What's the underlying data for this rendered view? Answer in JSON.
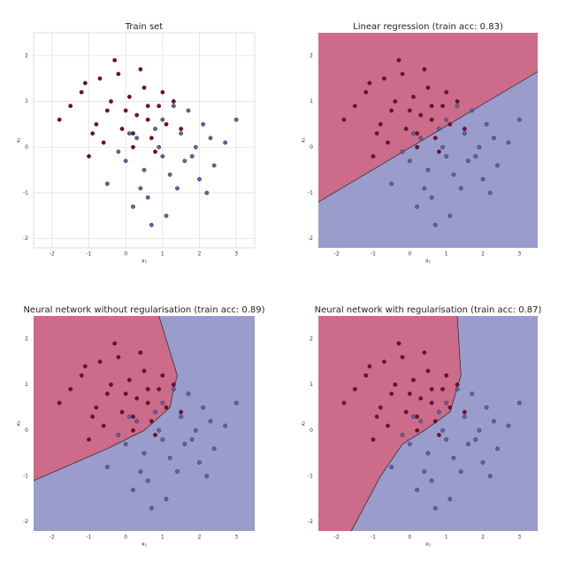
{
  "chart_data": [
    {
      "type": "scatter",
      "title": "Train set",
      "xlabel": "x₁",
      "ylabel": "x₂",
      "xlim": [
        -2.5,
        3.5
      ],
      "ylim": [
        -2.2,
        2.5
      ],
      "xticks": [
        -2,
        -1,
        0,
        1,
        2,
        3
      ],
      "yticks": [
        -2,
        -1,
        0,
        1,
        2
      ],
      "grid": true,
      "series": [
        {
          "color": "#7a0a2e",
          "x": [
            -1.8,
            -1.2,
            -0.9,
            -0.7,
            -0.5,
            -0.3,
            -0.1,
            0.1,
            0.3,
            0.5,
            0.7,
            0.9,
            1.1,
            1.3,
            -1.0,
            -0.6,
            -0.2,
            0.2,
            0.6,
            1.0,
            -1.5,
            -0.8,
            0.0,
            0.4,
            0.8,
            -0.4,
            0.2,
            -1.1,
            0.6,
            1.5
          ],
          "values": [
            0.6,
            1.2,
            0.3,
            1.5,
            0.8,
            1.9,
            0.4,
            1.1,
            0.7,
            1.3,
            0.2,
            0.9,
            0.5,
            1.0,
            -0.2,
            0.1,
            1.6,
            0.0,
            0.6,
            1.2,
            0.9,
            0.5,
            0.8,
            1.7,
            -0.1,
            1.0,
            0.3,
            1.4,
            0.9,
            0.4
          ]
        },
        {
          "color": "#5d62a8",
          "x": [
            -0.5,
            0.0,
            0.3,
            0.6,
            0.9,
            1.2,
            1.5,
            1.8,
            2.1,
            2.4,
            2.7,
            3.0,
            0.2,
            0.5,
            0.8,
            1.1,
            1.4,
            1.7,
            2.0,
            2.3,
            -0.2,
            0.4,
            1.0,
            1.6,
            2.2,
            0.7,
            1.3,
            1.9,
            0.1,
            1.0
          ],
          "values": [
            -0.8,
            -0.3,
            0.2,
            -1.1,
            0.0,
            -0.6,
            0.3,
            -0.2,
            0.5,
            -0.4,
            0.1,
            0.6,
            -1.3,
            -0.5,
            0.4,
            -1.5,
            -0.9,
            0.8,
            -0.7,
            0.2,
            -0.1,
            -0.9,
            0.6,
            -0.3,
            -1.0,
            -1.7,
            0.9,
            0.0,
            0.3,
            -0.2
          ]
        }
      ]
    },
    {
      "type": "scatter",
      "title": "Linear regression (train acc: 0.83)",
      "xlabel": "x₁",
      "ylabel": "x₂",
      "xlim": [
        -2.5,
        3.5
      ],
      "ylim": [
        -2.2,
        2.5
      ],
      "xticks": [
        -2,
        -1,
        0,
        1,
        2,
        3
      ],
      "yticks": [
        -2,
        -1,
        0,
        1,
        2
      ],
      "grid": false,
      "boundary": {
        "x": [
          3.5,
          -2.5
        ],
        "y": [
          1.65,
          -1.2
        ]
      },
      "series": [
        {
          "color": "#7a0a2e",
          "x": [
            -1.8,
            -1.2,
            -0.9,
            -0.7,
            -0.5,
            -0.3,
            -0.1,
            0.1,
            0.3,
            0.5,
            0.7,
            0.9,
            1.1,
            1.3,
            -1.0,
            -0.6,
            -0.2,
            0.2,
            0.6,
            1.0,
            -1.5,
            -0.8,
            0.0,
            0.4,
            0.8,
            -0.4,
            0.2,
            -1.1,
            0.6,
            1.5
          ],
          "values": [
            0.6,
            1.2,
            0.3,
            1.5,
            0.8,
            1.9,
            0.4,
            1.1,
            0.7,
            1.3,
            0.2,
            0.9,
            0.5,
            1.0,
            -0.2,
            0.1,
            1.6,
            0.0,
            0.6,
            1.2,
            0.9,
            0.5,
            0.8,
            1.7,
            -0.1,
            1.0,
            0.3,
            1.4,
            0.9,
            0.4
          ]
        },
        {
          "color": "#5d62a8",
          "x": [
            -0.5,
            0.0,
            0.3,
            0.6,
            0.9,
            1.2,
            1.5,
            1.8,
            2.1,
            2.4,
            2.7,
            3.0,
            0.2,
            0.5,
            0.8,
            1.1,
            1.4,
            1.7,
            2.0,
            2.3,
            -0.2,
            0.4,
            1.0,
            1.6,
            2.2,
            0.7,
            1.3,
            1.9,
            0.1,
            1.0
          ],
          "values": [
            -0.8,
            -0.3,
            0.2,
            -1.1,
            0.0,
            -0.6,
            0.3,
            -0.2,
            0.5,
            -0.4,
            0.1,
            0.6,
            -1.3,
            -0.5,
            0.4,
            -1.5,
            -0.9,
            0.8,
            -0.7,
            0.2,
            -0.1,
            -0.9,
            0.6,
            -0.3,
            -1.0,
            -1.7,
            0.9,
            0.0,
            0.3,
            -0.2
          ]
        }
      ]
    },
    {
      "type": "scatter",
      "title": "Neural network without regularisation (train acc: 0.89)",
      "xlabel": "x₁",
      "ylabel": "x₂",
      "xlim": [
        -2.5,
        3.5
      ],
      "ylim": [
        -2.2,
        2.5
      ],
      "xticks": [
        -2,
        -1,
        0,
        1,
        2,
        3
      ],
      "yticks": [
        -2,
        -1,
        0,
        1,
        2
      ],
      "grid": false,
      "boundary": {
        "x": [
          0.9,
          1.4,
          1.3,
          1.2,
          0.5,
          -0.5,
          -2.5
        ],
        "y": [
          2.5,
          1.2,
          0.9,
          0.5,
          0.0,
          -0.4,
          -1.1
        ]
      },
      "series": [
        {
          "color": "#7a0a2e",
          "x": [
            -1.8,
            -1.2,
            -0.9,
            -0.7,
            -0.5,
            -0.3,
            -0.1,
            0.1,
            0.3,
            0.5,
            0.7,
            0.9,
            1.1,
            1.3,
            -1.0,
            -0.6,
            -0.2,
            0.2,
            0.6,
            1.0,
            -1.5,
            -0.8,
            0.0,
            0.4,
            0.8,
            -0.4,
            0.2,
            -1.1,
            0.6,
            1.5
          ],
          "values": [
            0.6,
            1.2,
            0.3,
            1.5,
            0.8,
            1.9,
            0.4,
            1.1,
            0.7,
            1.3,
            0.2,
            0.9,
            0.5,
            1.0,
            -0.2,
            0.1,
            1.6,
            0.0,
            0.6,
            1.2,
            0.9,
            0.5,
            0.8,
            1.7,
            -0.1,
            1.0,
            0.3,
            1.4,
            0.9,
            0.4
          ]
        },
        {
          "color": "#5d62a8",
          "x": [
            -0.5,
            0.0,
            0.3,
            0.6,
            0.9,
            1.2,
            1.5,
            1.8,
            2.1,
            2.4,
            2.7,
            3.0,
            0.2,
            0.5,
            0.8,
            1.1,
            1.4,
            1.7,
            2.0,
            2.3,
            -0.2,
            0.4,
            1.0,
            1.6,
            2.2,
            0.7,
            1.3,
            1.9,
            0.1,
            1.0
          ],
          "values": [
            -0.8,
            -0.3,
            0.2,
            -1.1,
            0.0,
            -0.6,
            0.3,
            -0.2,
            0.5,
            -0.4,
            0.1,
            0.6,
            -1.3,
            -0.5,
            0.4,
            -1.5,
            -0.9,
            0.8,
            -0.7,
            0.2,
            -0.1,
            -0.9,
            0.6,
            -0.3,
            -1.0,
            -1.7,
            0.9,
            0.0,
            0.3,
            -0.2
          ]
        }
      ]
    },
    {
      "type": "scatter",
      "title": "Neural network with regularisation (train acc: 0.87)",
      "xlabel": "x₁",
      "ylabel": "x₂",
      "xlim": [
        -2.5,
        3.5
      ],
      "ylim": [
        -2.2,
        2.5
      ],
      "xticks": [
        -2,
        -1,
        0,
        1,
        2,
        3
      ],
      "yticks": [
        -2,
        -1,
        0,
        1,
        2
      ],
      "grid": false,
      "boundary": {
        "x": [
          1.3,
          1.4,
          1.1,
          0.4,
          -0.2,
          -0.8,
          -1.6
        ],
        "y": [
          2.5,
          1.2,
          0.4,
          0.0,
          -0.3,
          -1.0,
          -2.2
        ]
      },
      "series": [
        {
          "color": "#7a0a2e",
          "x": [
            -1.8,
            -1.2,
            -0.9,
            -0.7,
            -0.5,
            -0.3,
            -0.1,
            0.1,
            0.3,
            0.5,
            0.7,
            0.9,
            1.1,
            1.3,
            -1.0,
            -0.6,
            -0.2,
            0.2,
            0.6,
            1.0,
            -1.5,
            -0.8,
            0.0,
            0.4,
            0.8,
            -0.4,
            0.2,
            -1.1,
            0.6,
            1.5
          ],
          "values": [
            0.6,
            1.2,
            0.3,
            1.5,
            0.8,
            1.9,
            0.4,
            1.1,
            0.7,
            1.3,
            0.2,
            0.9,
            0.5,
            1.0,
            -0.2,
            0.1,
            1.6,
            0.0,
            0.6,
            1.2,
            0.9,
            0.5,
            0.8,
            1.7,
            -0.1,
            1.0,
            0.3,
            1.4,
            0.9,
            0.4
          ]
        },
        {
          "color": "#5d62a8",
          "x": [
            -0.5,
            0.0,
            0.3,
            0.6,
            0.9,
            1.2,
            1.5,
            1.8,
            2.1,
            2.4,
            2.7,
            3.0,
            0.2,
            0.5,
            0.8,
            1.1,
            1.4,
            1.7,
            2.0,
            2.3,
            -0.2,
            0.4,
            1.0,
            1.6,
            2.2,
            0.7,
            1.3,
            1.9,
            0.1,
            1.0
          ],
          "values": [
            -0.8,
            -0.3,
            0.2,
            -1.1,
            0.0,
            -0.6,
            0.3,
            -0.2,
            0.5,
            -0.4,
            0.1,
            0.6,
            -1.3,
            -0.5,
            0.4,
            -1.5,
            -0.9,
            0.8,
            -0.7,
            0.2,
            -0.1,
            -0.9,
            0.6,
            -0.3,
            -1.0,
            -1.7,
            0.9,
            0.0,
            0.3,
            -0.2
          ]
        }
      ]
    }
  ]
}
